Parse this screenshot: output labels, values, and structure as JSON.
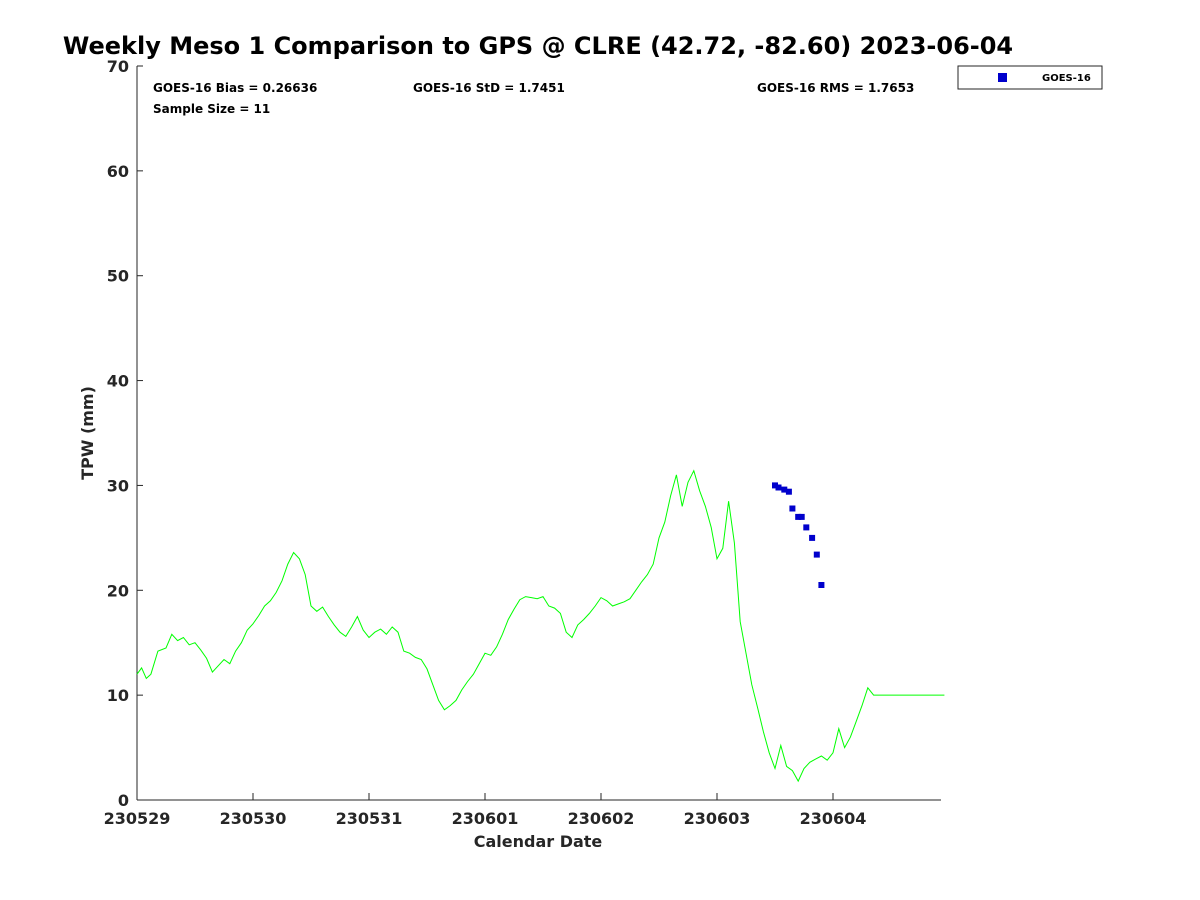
{
  "chart_data": {
    "type": "line",
    "title": "Weekly Meso 1 Comparison to GPS @ CLRE (42.72, -82.60) 2023-06-04",
    "xlabel": "Calendar Date",
    "ylabel": "TPW (mm)",
    "xlim": [
      "230529 00:00",
      "230604 23:00"
    ],
    "ylim": [
      0,
      70
    ],
    "y_ticks": [
      0,
      10,
      20,
      30,
      40,
      50,
      60,
      70
    ],
    "x_ticks": [
      "230529",
      "230530",
      "230531",
      "230601",
      "230602",
      "230603",
      "230604"
    ],
    "grid": false,
    "legend": {
      "placement": "top-right, outside plot",
      "entries": [
        "GOES-16"
      ]
    },
    "stats": {
      "bias": "GOES-16 Bias = 0.26636",
      "std": "GOES-16 StD = 1.7451",
      "rms": "GOES-16 RMS = 1.7653",
      "sample": "Sample Size = 11"
    },
    "colors": {
      "gps_line": "#00ff00",
      "goes_marker": "#0000cc"
    },
    "series": [
      {
        "style": "line",
        "x_days": [
          0.0,
          0.04,
          0.08,
          0.12,
          0.18,
          0.25,
          0.3,
          0.35,
          0.4,
          0.45,
          0.5,
          0.55,
          0.6,
          0.65,
          0.7,
          0.75,
          0.8,
          0.85,
          0.9,
          0.95,
          1.0,
          1.05,
          1.1,
          1.15,
          1.2,
          1.25,
          1.3,
          1.35,
          1.4,
          1.45,
          1.5,
          1.55,
          1.6,
          1.65,
          1.7,
          1.75,
          1.8,
          1.85,
          1.9,
          1.95,
          2.0,
          2.05,
          2.1,
          2.15,
          2.2,
          2.25,
          2.3,
          2.35,
          2.4,
          2.45,
          2.5,
          2.55,
          2.6,
          2.65,
          2.7,
          2.75,
          2.8,
          2.85,
          2.9,
          2.95,
          3.0,
          3.05,
          3.1,
          3.15,
          3.2,
          3.25,
          3.3,
          3.35,
          3.4,
          3.45,
          3.5,
          3.55,
          3.6,
          3.65,
          3.7,
          3.75,
          3.8,
          3.85,
          3.9,
          3.95,
          4.0,
          4.05,
          4.1,
          4.15,
          4.2,
          4.25,
          4.3,
          4.35,
          4.4,
          4.45,
          4.5,
          4.55,
          4.6,
          4.65,
          4.7,
          4.75,
          4.8,
          4.85,
          4.9,
          4.95,
          5.0,
          5.05,
          5.1,
          5.15,
          5.2,
          5.25,
          5.3,
          5.35,
          5.4,
          5.45,
          5.5,
          5.55,
          5.6,
          5.65,
          5.7,
          5.75,
          5.8,
          5.85,
          5.9,
          5.95,
          6.0,
          6.05,
          6.1,
          6.15,
          6.2,
          6.25,
          6.3,
          6.35,
          6.4,
          6.45,
          6.5,
          6.55,
          6.6,
          6.65,
          6.7,
          6.75,
          6.8,
          6.85,
          6.9,
          6.93,
          6.96
        ],
        "values": [
          12.0,
          12.6,
          11.6,
          12.0,
          14.2,
          14.5,
          15.8,
          15.2,
          15.5,
          14.8,
          15.0,
          14.3,
          13.5,
          12.2,
          12.8,
          13.4,
          13.0,
          14.2,
          15.0,
          16.2,
          16.8,
          17.6,
          18.5,
          19.0,
          19.8,
          20.9,
          22.5,
          23.6,
          23.0,
          21.5,
          18.5,
          18.0,
          18.4,
          17.5,
          16.7,
          16.0,
          15.6,
          16.5,
          17.5,
          16.2,
          15.5,
          16.0,
          16.3,
          15.8,
          16.5,
          16.0,
          14.2,
          14.0,
          13.6,
          13.4,
          12.5,
          11.0,
          9.5,
          8.6,
          9.0,
          9.5,
          10.5,
          11.3,
          12.0,
          13.0,
          14.0,
          13.8,
          14.6,
          15.8,
          17.2,
          18.2,
          19.1,
          19.4,
          19.3,
          19.2,
          19.4,
          18.5,
          18.3,
          17.8,
          16.0,
          15.5,
          16.7,
          17.2,
          17.8,
          18.5,
          19.3,
          19.0,
          18.5,
          18.7,
          18.9,
          19.2,
          20.0,
          20.8,
          21.5,
          22.5,
          25.0,
          26.5,
          29.0,
          31.0,
          28.0,
          30.3,
          31.4,
          29.5,
          28.0,
          26.0,
          23.0,
          24.0,
          28.5,
          24.5,
          17.0,
          14.0,
          11.0,
          8.8,
          6.5,
          4.5,
          3.0,
          5.2,
          3.2,
          2.8,
          1.8,
          3.0,
          3.6,
          3.9,
          4.2,
          3.8,
          4.5,
          6.8,
          5.0,
          6.0,
          7.5,
          9.0,
          10.7,
          10.0,
          10.0,
          10.0,
          10.0,
          10.0,
          10.0,
          10.0,
          10.0,
          10.0,
          10.0,
          10.0,
          10.0,
          10.0,
          10.0
        ]
      },
      {
        "name": "GOES-16",
        "style": "markers",
        "x_days": [
          5.5,
          5.53,
          5.58,
          5.62,
          5.65,
          5.7,
          5.73,
          5.77,
          5.82,
          5.86,
          5.9
        ],
        "values": [
          30.0,
          29.8,
          29.6,
          29.4,
          27.8,
          27.0,
          27.0,
          26.0,
          25.0,
          23.4,
          20.5
        ]
      }
    ]
  }
}
